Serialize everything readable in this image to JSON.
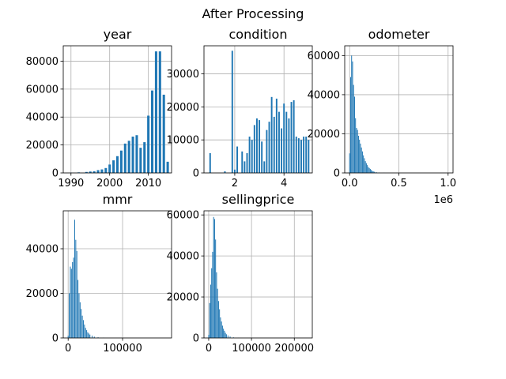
{
  "figure": {
    "suptitle": "After Processing"
  },
  "chart_data": [
    {
      "type": "bar",
      "title": "year",
      "xlim": [
        1988,
        2016
      ],
      "ylim": [
        0,
        91000
      ],
      "xticks": [
        1990,
        2000,
        2010
      ],
      "xtick_labels": [
        "1990",
        "2000",
        "2010"
      ],
      "yticks": [
        0,
        20000,
        40000,
        60000,
        80000
      ],
      "ytick_labels": [
        "0",
        "20000",
        "40000",
        "60000",
        "80000"
      ],
      "x_offset_label": "",
      "grid": true,
      "bar_color": "#1f77b4",
      "bins": [
        [
          1990,
          200
        ],
        [
          1992,
          400
        ],
        [
          1994,
          700
        ],
        [
          1995,
          1000
        ],
        [
          1996,
          1200
        ],
        [
          1997,
          2000
        ],
        [
          1998,
          2500
        ],
        [
          1999,
          3500
        ],
        [
          2000,
          6000
        ],
        [
          2001,
          9000
        ],
        [
          2002,
          12000
        ],
        [
          2003,
          16000
        ],
        [
          2004,
          21000
        ],
        [
          2005,
          23000
        ],
        [
          2006,
          26000
        ],
        [
          2007,
          27000
        ],
        [
          2008,
          18000
        ],
        [
          2009,
          22000
        ],
        [
          2010,
          41000
        ],
        [
          2011,
          59000
        ],
        [
          2012,
          87000
        ],
        [
          2013,
          87000
        ],
        [
          2014,
          56000
        ],
        [
          2015,
          8000
        ]
      ]
    },
    {
      "type": "bar",
      "title": "condition",
      "xlim": [
        0.75,
        5.15
      ],
      "ylim": [
        0,
        38500
      ],
      "xticks": [
        2,
        4
      ],
      "xtick_labels": [
        "2",
        "4"
      ],
      "yticks": [
        0,
        10000,
        20000,
        30000
      ],
      "ytick_labels": [
        "0",
        "10000",
        "20000",
        "30000"
      ],
      "x_offset_label": "",
      "grid": true,
      "bar_color": "#1f77b4",
      "bins": [
        [
          1.0,
          6000
        ],
        [
          1.6,
          500
        ],
        [
          1.9,
          37000
        ],
        [
          2.0,
          1000
        ],
        [
          2.1,
          8000
        ],
        [
          2.3,
          6500
        ],
        [
          2.4,
          3500
        ],
        [
          2.5,
          6000
        ],
        [
          2.6,
          11000
        ],
        [
          2.7,
          10000
        ],
        [
          2.8,
          14500
        ],
        [
          2.9,
          16500
        ],
        [
          3.0,
          16000
        ],
        [
          3.1,
          9500
        ],
        [
          3.2,
          3500
        ],
        [
          3.3,
          13000
        ],
        [
          3.4,
          15500
        ],
        [
          3.5,
          23000
        ],
        [
          3.6,
          17000
        ],
        [
          3.7,
          22500
        ],
        [
          3.8,
          18500
        ],
        [
          3.9,
          13500
        ],
        [
          4.0,
          21000
        ],
        [
          4.1,
          18500
        ],
        [
          4.2,
          16500
        ],
        [
          4.3,
          21500
        ],
        [
          4.4,
          22000
        ],
        [
          4.5,
          11000
        ],
        [
          4.6,
          10500
        ],
        [
          4.7,
          10000
        ],
        [
          4.8,
          11000
        ],
        [
          4.9,
          11000
        ],
        [
          5.0,
          10000
        ]
      ]
    },
    {
      "type": "bar",
      "title": "odometer",
      "xlim": [
        -0.05,
        1.05
      ],
      "ylim": [
        0,
        65000
      ],
      "xticks": [
        0.0,
        0.5,
        1.0
      ],
      "xtick_labels": [
        "0.0",
        "0.5",
        "1.0"
      ],
      "yticks": [
        0,
        20000,
        40000,
        60000
      ],
      "ytick_labels": [
        "0",
        "20000",
        "40000",
        "60000"
      ],
      "x_offset_label": "1e6",
      "grid": true,
      "bar_color": "#1f77b4",
      "bins": [
        [
          0.0,
          10000
        ],
        [
          0.01,
          49000
        ],
        [
          0.02,
          60000
        ],
        [
          0.03,
          57000
        ],
        [
          0.04,
          45000
        ],
        [
          0.05,
          39000
        ],
        [
          0.06,
          28000
        ],
        [
          0.07,
          23000
        ],
        [
          0.08,
          22000
        ],
        [
          0.09,
          19000
        ],
        [
          0.1,
          17000
        ],
        [
          0.11,
          15000
        ],
        [
          0.12,
          13000
        ],
        [
          0.13,
          11000
        ],
        [
          0.14,
          9000
        ],
        [
          0.15,
          7500
        ],
        [
          0.16,
          6000
        ],
        [
          0.17,
          5000
        ],
        [
          0.18,
          4000
        ],
        [
          0.19,
          3000
        ],
        [
          0.2,
          2500
        ],
        [
          0.21,
          2000
        ],
        [
          0.22,
          1500
        ],
        [
          0.23,
          1000
        ],
        [
          0.24,
          800
        ],
        [
          0.25,
          600
        ],
        [
          0.27,
          400
        ],
        [
          0.3,
          200
        ],
        [
          0.35,
          100
        ]
      ]
    },
    {
      "type": "bar",
      "title": "mmr",
      "xlim": [
        -9000,
        190000
      ],
      "ylim": [
        0,
        57000
      ],
      "xticks": [
        0,
        100000
      ],
      "xtick_labels": [
        "0",
        "100000"
      ],
      "yticks": [
        0,
        20000,
        40000
      ],
      "ytick_labels": [
        "0",
        "20000",
        "40000"
      ],
      "x_offset_label": "",
      "grid": true,
      "bar_color": "#1f77b4",
      "bins": [
        [
          0,
          1000
        ],
        [
          2000,
          20000
        ],
        [
          4000,
          32000
        ],
        [
          6000,
          31000
        ],
        [
          8000,
          34000
        ],
        [
          10000,
          36000
        ],
        [
          12000,
          53000
        ],
        [
          14000,
          44000
        ],
        [
          16000,
          39000
        ],
        [
          18000,
          26000
        ],
        [
          20000,
          20000
        ],
        [
          22000,
          16000
        ],
        [
          24000,
          13000
        ],
        [
          26000,
          10000
        ],
        [
          28000,
          8000
        ],
        [
          30000,
          6000
        ],
        [
          32000,
          4500
        ],
        [
          34000,
          3500
        ],
        [
          36000,
          2500
        ],
        [
          38000,
          2000
        ],
        [
          40000,
          1500
        ],
        [
          44000,
          1000
        ],
        [
          48000,
          600
        ],
        [
          55000,
          300
        ],
        [
          65000,
          150
        ]
      ]
    },
    {
      "type": "bar",
      "title": "sellingprice",
      "xlim": [
        -11000,
        242000
      ],
      "ylim": [
        0,
        62000
      ],
      "xticks": [
        0,
        100000,
        200000
      ],
      "xtick_labels": [
        "0",
        "100000",
        "200000"
      ],
      "yticks": [
        0,
        20000,
        40000,
        60000
      ],
      "ytick_labels": [
        "0",
        "20000",
        "40000",
        "60000"
      ],
      "x_offset_label": "",
      "grid": true,
      "bar_color": "#1f77b4",
      "bins": [
        [
          0,
          1500
        ],
        [
          2300,
          17000
        ],
        [
          4600,
          26000
        ],
        [
          6900,
          34000
        ],
        [
          9200,
          42000
        ],
        [
          11500,
          59000
        ],
        [
          13800,
          58000
        ],
        [
          16100,
          48000
        ],
        [
          18400,
          32000
        ],
        [
          20700,
          24000
        ],
        [
          23000,
          18000
        ],
        [
          25300,
          14000
        ],
        [
          27600,
          10000
        ],
        [
          29900,
          8000
        ],
        [
          32200,
          6000
        ],
        [
          34500,
          4500
        ],
        [
          36800,
          3500
        ],
        [
          39100,
          2500
        ],
        [
          41400,
          1800
        ],
        [
          45000,
          1200
        ],
        [
          50000,
          700
        ],
        [
          58000,
          300
        ],
        [
          70000,
          100
        ]
      ]
    }
  ]
}
